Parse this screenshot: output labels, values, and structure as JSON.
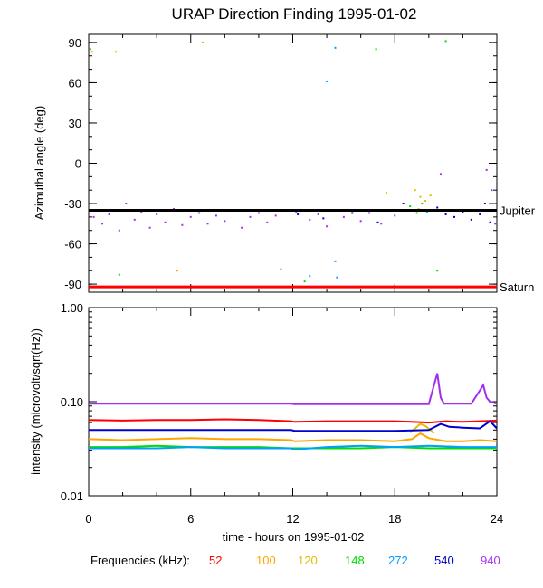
{
  "chart_data": [
    {
      "type": "scatter",
      "title": "URAP Direction Finding  1995-01-02",
      "ylabel": "Azimuthal angle (deg)",
      "xlim": [
        0,
        24
      ],
      "ylim": [
        -96,
        96
      ],
      "yticks": [
        90,
        60,
        30,
        0,
        -30,
        -60,
        -90
      ],
      "reference_lines": [
        {
          "name": "Jupiter",
          "y": -35,
          "color": "#000000"
        },
        {
          "name": "Saturn",
          "y": -92,
          "color": "#ff0000"
        }
      ],
      "series": [
        {
          "name": "52",
          "color": "#ff0000",
          "points": []
        },
        {
          "name": "100",
          "color": "#ffa500",
          "points": [
            [
              0.2,
              83
            ],
            [
              1.6,
              83
            ],
            [
              5.2,
              -80
            ],
            [
              6.7,
              90
            ]
          ]
        },
        {
          "name": "120",
          "color": "#e0c000",
          "points": [
            [
              17.5,
              -22
            ],
            [
              19.2,
              -20
            ],
            [
              19.5,
              -25
            ],
            [
              19.8,
              -28
            ],
            [
              20.1,
              -24
            ],
            [
              19.4,
              -34
            ]
          ]
        },
        {
          "name": "148",
          "color": "#00dd00",
          "points": [
            [
              0.1,
              85
            ],
            [
              1.8,
              -83
            ],
            [
              11.3,
              -79
            ],
            [
              16.9,
              85
            ],
            [
              18.9,
              -32
            ],
            [
              19.3,
              -37
            ],
            [
              19.6,
              -30
            ],
            [
              21.0,
              91
            ],
            [
              20.5,
              -80
            ],
            [
              12.7,
              -88
            ]
          ]
        },
        {
          "name": "272",
          "color": "#00a0ff",
          "points": [
            [
              14.5,
              86
            ],
            [
              14.0,
              61
            ],
            [
              14.5,
              -73
            ],
            [
              14.6,
              -85
            ],
            [
              13.0,
              -84
            ],
            [
              19.9,
              -36
            ]
          ]
        },
        {
          "name": "540",
          "color": "#0000d0",
          "points": [
            [
              11.2,
              -35
            ],
            [
              12.3,
              -38
            ],
            [
              13.8,
              -41
            ],
            [
              15.5,
              -37
            ],
            [
              17.0,
              -44
            ],
            [
              18.5,
              -30
            ],
            [
              20.5,
              -33
            ],
            [
              21.0,
              -38
            ],
            [
              21.5,
              -40
            ],
            [
              22.0,
              -36
            ],
            [
              22.5,
              -42
            ],
            [
              23.0,
              -38
            ],
            [
              23.3,
              -30
            ],
            [
              23.6,
              -44
            ],
            [
              23.8,
              -35
            ]
          ]
        },
        {
          "name": "940",
          "color": "#a030f0",
          "points": [
            [
              0.3,
              -40
            ],
            [
              0.8,
              -45
            ],
            [
              1.2,
              -38
            ],
            [
              1.8,
              -50
            ],
            [
              2.2,
              -30
            ],
            [
              2.7,
              -42
            ],
            [
              3.1,
              -36
            ],
            [
              3.6,
              -48
            ],
            [
              4.0,
              -38
            ],
            [
              4.5,
              -44
            ],
            [
              5.0,
              -34
            ],
            [
              5.5,
              -46
            ],
            [
              6.0,
              -40
            ],
            [
              6.5,
              -37
            ],
            [
              7.0,
              -45
            ],
            [
              7.5,
              -39
            ],
            [
              8.0,
              -43
            ],
            [
              8.5,
              -35
            ],
            [
              9.0,
              -48
            ],
            [
              9.5,
              -40
            ],
            [
              10.0,
              -37
            ],
            [
              10.5,
              -44
            ],
            [
              11.0,
              -39
            ],
            [
              12.2,
              -36
            ],
            [
              13.0,
              -42
            ],
            [
              13.5,
              -38
            ],
            [
              14.0,
              -47
            ],
            [
              15.0,
              -40
            ],
            [
              16.0,
              -43
            ],
            [
              16.5,
              -37
            ],
            [
              17.2,
              -45
            ],
            [
              18.0,
              -39
            ],
            [
              20.7,
              -8
            ],
            [
              23.4,
              -5
            ],
            [
              23.7,
              -20
            ],
            [
              23.9,
              -45
            ]
          ]
        }
      ]
    },
    {
      "type": "line",
      "ylabel": "intensity (microvolt/sqrt(Hz))",
      "xlabel": "time - hours on 1995-01-02",
      "xlim": [
        0,
        24
      ],
      "xticks": [
        "0",
        "6",
        "12",
        "18",
        "24"
      ],
      "yscale": "log",
      "ylim": [
        0.01,
        1.0
      ],
      "yticks": [
        "1.00",
        "0.10",
        "0.01"
      ],
      "series": [
        {
          "name": "52",
          "color": "#ff0000",
          "x": [
            0,
            2,
            4,
            6,
            8,
            10,
            11.9,
            12.1,
            14,
            16,
            18,
            19,
            20,
            21,
            22,
            23,
            24
          ],
          "y": [
            0.064,
            0.063,
            0.064,
            0.064,
            0.065,
            0.064,
            0.062,
            0.061,
            0.062,
            0.062,
            0.062,
            0.061,
            0.06,
            0.062,
            0.061,
            0.062,
            0.063
          ]
        },
        {
          "name": "100",
          "color": "#ffa500",
          "x": [
            0,
            2,
            4,
            6,
            8,
            10,
            11.9,
            12.1,
            14,
            16,
            18,
            19,
            19.5,
            20,
            21,
            22,
            23,
            24
          ],
          "y": [
            0.04,
            0.039,
            0.04,
            0.041,
            0.04,
            0.04,
            0.039,
            0.038,
            0.039,
            0.039,
            0.038,
            0.04,
            0.046,
            0.041,
            0.038,
            0.038,
            0.039,
            0.038
          ]
        },
        {
          "name": "120",
          "color": "#e0c000",
          "x": [
            18.9,
            19.2,
            19.5,
            19.8,
            20.1,
            20.3
          ],
          "y": [
            0.047,
            0.052,
            0.058,
            0.055,
            0.05,
            0.046
          ]
        },
        {
          "name": "148",
          "color": "#00dd00",
          "x": [
            0,
            2,
            4,
            6,
            8,
            10,
            11.9,
            12.1,
            14,
            16,
            18,
            20,
            22,
            24
          ],
          "y": [
            0.033,
            0.033,
            0.034,
            0.033,
            0.033,
            0.033,
            0.032,
            0.032,
            0.032,
            0.032,
            0.033,
            0.032,
            0.032,
            0.032
          ]
        },
        {
          "name": "272",
          "color": "#00a0ff",
          "x": [
            0,
            2,
            4,
            6,
            8,
            10,
            11.9,
            12.1,
            14,
            16,
            18,
            20,
            22,
            24
          ],
          "y": [
            0.032,
            0.032,
            0.032,
            0.033,
            0.032,
            0.032,
            0.032,
            0.031,
            0.033,
            0.034,
            0.033,
            0.034,
            0.033,
            0.033
          ]
        },
        {
          "name": "540",
          "color": "#0000d0",
          "x": [
            0,
            2,
            4,
            6,
            8,
            10,
            11.9,
            12.1,
            14,
            16,
            18,
            20,
            20.7,
            21.2,
            22,
            23,
            23.6,
            24
          ],
          "y": [
            0.05,
            0.05,
            0.05,
            0.05,
            0.05,
            0.05,
            0.05,
            0.049,
            0.049,
            0.049,
            0.049,
            0.05,
            0.058,
            0.054,
            0.053,
            0.052,
            0.062,
            0.052
          ]
        },
        {
          "name": "940",
          "color": "#a030f0",
          "x": [
            0,
            2,
            4,
            6,
            8,
            10,
            11.9,
            12.1,
            14,
            16,
            18,
            20,
            20.5,
            20.7,
            20.9,
            21.5,
            22.5,
            23.2,
            23.4,
            23.6,
            24
          ],
          "y": [
            0.095,
            0.095,
            0.095,
            0.095,
            0.095,
            0.095,
            0.095,
            0.094,
            0.094,
            0.094,
            0.094,
            0.094,
            0.2,
            0.11,
            0.095,
            0.095,
            0.095,
            0.15,
            0.11,
            0.1,
            0.095
          ]
        }
      ]
    }
  ],
  "legend": {
    "label": "Frequencies (kHz):",
    "items": [
      {
        "value": "52",
        "color": "#ff0000"
      },
      {
        "value": "100",
        "color": "#ffa500"
      },
      {
        "value": "120",
        "color": "#e0c000"
      },
      {
        "value": "148",
        "color": "#00dd00"
      },
      {
        "value": "272",
        "color": "#00a0ff"
      },
      {
        "value": "540",
        "color": "#0000d0"
      },
      {
        "value": "940",
        "color": "#a030f0"
      }
    ]
  }
}
